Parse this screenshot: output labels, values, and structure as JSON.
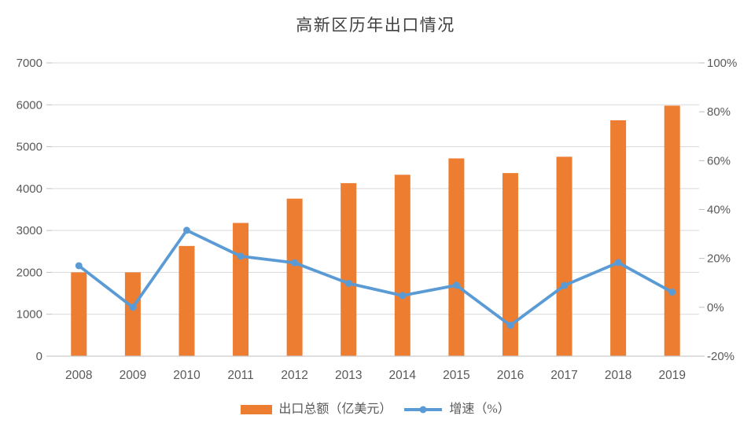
{
  "chart_data": {
    "type": "bar+line combo",
    "title": "高新区历年出口情况",
    "categories": [
      "2008",
      "2009",
      "2010",
      "2011",
      "2012",
      "2013",
      "2014",
      "2015",
      "2016",
      "2017",
      "2018",
      "2019"
    ],
    "series": [
      {
        "name": "出口总额（亿美元）",
        "type": "bar",
        "axis": "left",
        "color": "#ED7D31",
        "values": [
          2000,
          2000,
          2630,
          3180,
          3760,
          4130,
          4330,
          4720,
          4370,
          4760,
          5630,
          5980
        ]
      },
      {
        "name": "增速（%）",
        "type": "line",
        "axis": "right",
        "color": "#5B9BD5",
        "values": [
          17,
          0,
          31.5,
          20.9,
          18.2,
          9.8,
          4.8,
          9.0,
          -7.4,
          8.9,
          18.3,
          6.2
        ]
      }
    ],
    "left_axis": {
      "min": 0,
      "max": 7000,
      "tick_step": 1000,
      "tick_labels": [
        "0",
        "1000",
        "2000",
        "3000",
        "4000",
        "5000",
        "6000",
        "7000"
      ]
    },
    "right_axis": {
      "min": -20,
      "max": 100,
      "tick_step": 20,
      "tick_labels": [
        "-20%",
        "0%",
        "20%",
        "40%",
        "60%",
        "80%",
        "100%"
      ]
    },
    "grid": "horizontal gridlines on",
    "legend_position": "bottom"
  },
  "colors": {
    "bar": "#ED7D31",
    "line": "#5B9BD5",
    "gridline": "#D9D9D9",
    "axis_line": "#C9C9C9",
    "tick_mark": "#BFBFBF",
    "axis_text": "#595959",
    "title_text": "#404040",
    "background": "#FFFFFF"
  }
}
